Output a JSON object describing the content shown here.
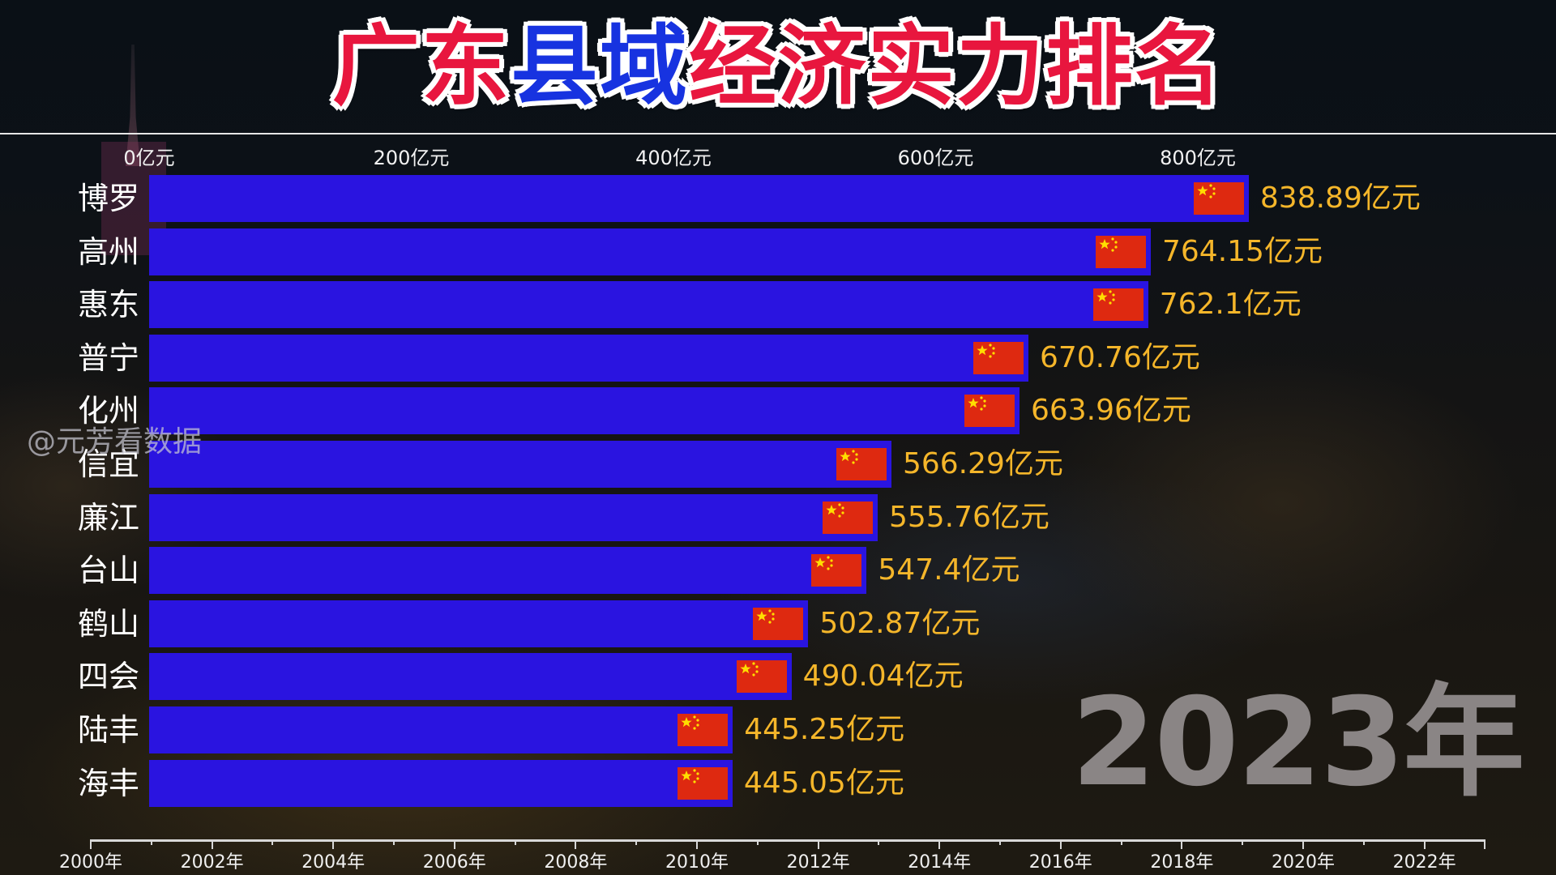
{
  "title": {
    "parts": [
      {
        "text": "广东",
        "color": "#e8163e"
      },
      {
        "text": "县域",
        "color": "#1733e0"
      },
      {
        "text": "经济实力排名",
        "color": "#e8163e"
      }
    ],
    "full": "广东县域经济实力排名"
  },
  "watermark": "@元芳看数据",
  "current_year_label": "2023年",
  "colors": {
    "bar": "#2a14e0",
    "value_label": "#f5b62a",
    "flag_red": "#de2910",
    "flag_star": "#ffde00",
    "year_label": "#8a8585"
  },
  "x_axis_ticks": [
    "0亿元",
    "200亿元",
    "400亿元",
    "600亿元",
    "800亿元"
  ],
  "rows": [
    {
      "name": "博罗",
      "value_label": "838.89亿元",
      "icon": "china-flag-icon"
    },
    {
      "name": "高州",
      "value_label": "764.15亿元",
      "icon": "china-flag-icon"
    },
    {
      "name": "惠东",
      "value_label": "762.1亿元",
      "icon": "china-flag-icon"
    },
    {
      "name": "普宁",
      "value_label": "670.76亿元",
      "icon": "china-flag-icon"
    },
    {
      "name": "化州",
      "value_label": "663.96亿元",
      "icon": "china-flag-icon"
    },
    {
      "name": "信宜",
      "value_label": "566.29亿元",
      "icon": "china-flag-icon"
    },
    {
      "name": "廉江",
      "value_label": "555.76亿元",
      "icon": "china-flag-icon"
    },
    {
      "name": "台山",
      "value_label": "547.4亿元",
      "icon": "china-flag-icon"
    },
    {
      "name": "鹤山",
      "value_label": "502.87亿元",
      "icon": "china-flag-icon"
    },
    {
      "name": "四会",
      "value_label": "490.04亿元",
      "icon": "china-flag-icon"
    },
    {
      "name": "陆丰",
      "value_label": "445.25亿元",
      "icon": "china-flag-icon"
    },
    {
      "name": "海丰",
      "value_label": "445.05亿元",
      "icon": "china-flag-icon"
    }
  ],
  "timeline": {
    "labels": [
      "2000年",
      "2002年",
      "2004年",
      "2006年",
      "2008年",
      "2010年",
      "2012年",
      "2014年",
      "2016年",
      "2018年",
      "2020年",
      "2022年"
    ],
    "start_year": 2000,
    "end_year": 2023,
    "current": 2023
  },
  "chart_data": {
    "type": "bar",
    "orientation": "horizontal",
    "title": "广东县域经济实力排名",
    "subtitle": "2023年",
    "categories": [
      "博罗",
      "高州",
      "惠东",
      "普宁",
      "化州",
      "信宜",
      "廉江",
      "台山",
      "鹤山",
      "四会",
      "陆丰",
      "海丰"
    ],
    "values": [
      838.89,
      764.15,
      762.1,
      670.76,
      663.96,
      566.29,
      555.76,
      547.4,
      502.87,
      490.04,
      445.25,
      445.05
    ],
    "unit": "亿元",
    "xlabel": "",
    "ylabel": "",
    "xlim": [
      0,
      900
    ],
    "x_ticks": [
      0,
      200,
      400,
      600,
      800
    ],
    "x_tick_labels": [
      "0亿元",
      "200亿元",
      "400亿元",
      "600亿元",
      "800亿元"
    ],
    "grid": false,
    "legend": null,
    "annotations": [
      "2023年",
      "@元芳看数据"
    ]
  }
}
